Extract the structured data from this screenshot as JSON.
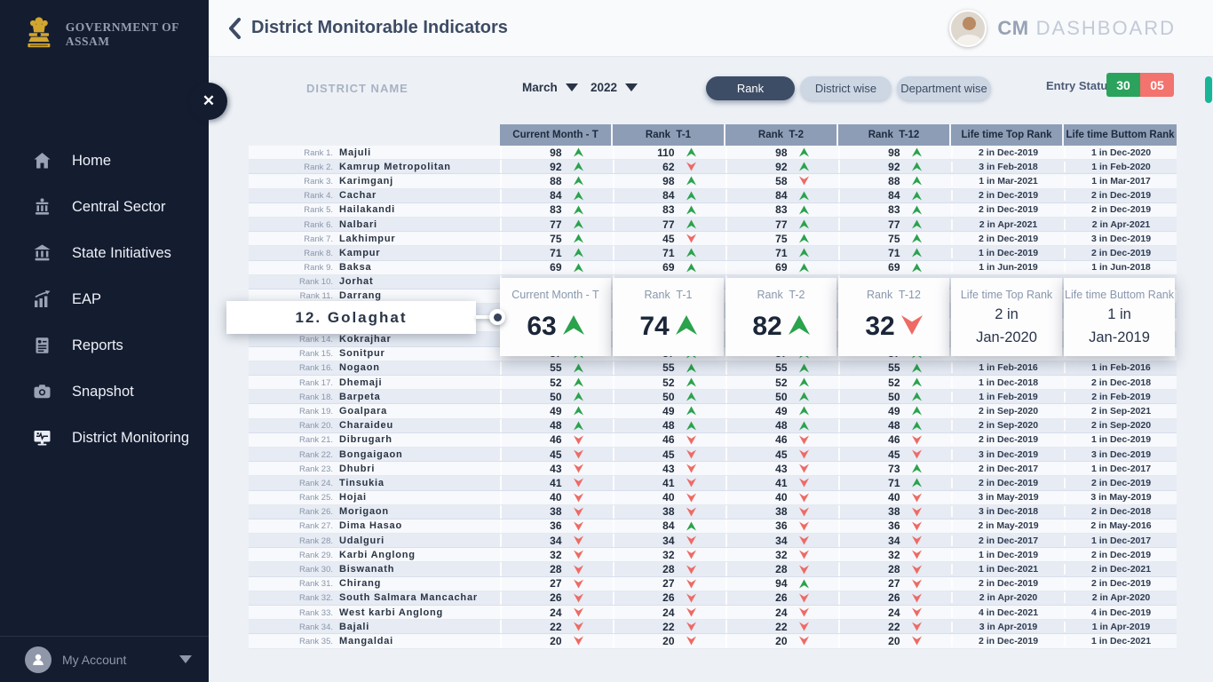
{
  "colors": {
    "up": "#2ba24c",
    "down": "#ee6a64",
    "sidebar": "#141c30",
    "accent": "#3e4d66",
    "entry_green": "#2ba35d",
    "entry_red": "#f3736e",
    "table_header": "#8e9db6",
    "scroll_thumb": "#18b598"
  },
  "sidebar": {
    "logo_text": "GOVERNMENT OF ASSAM",
    "items": [
      {
        "label": "Home",
        "icon": "home-icon"
      },
      {
        "label": "Central Sector",
        "icon": "government-building-icon"
      },
      {
        "label": "State Initiatives",
        "icon": "bank-icon"
      },
      {
        "label": "EAP",
        "icon": "growth-chart-icon"
      },
      {
        "label": "Reports",
        "icon": "report-icon"
      },
      {
        "label": "Snapshot",
        "icon": "camera-icon"
      },
      {
        "label": "District Monitoring",
        "icon": "monitor-pulse-icon"
      }
    ],
    "account_label": "My Account"
  },
  "header": {
    "title": "District Monitorable Indicators",
    "brand_bold": "CM",
    "brand_light": "DASHBOARD"
  },
  "filters": {
    "district_name_label": "DISTRICT NAME",
    "month": "March",
    "year": "2022",
    "view_buttons": [
      {
        "label": "Rank",
        "active": true
      },
      {
        "label": "District wise",
        "active": false
      },
      {
        "label": "Department wise",
        "active": false
      }
    ],
    "entry_status_label": "Entry Status:",
    "entry_status_green": "30",
    "entry_status_red": "05"
  },
  "table": {
    "columns": [
      "Current Month - T",
      "Rank  T-1",
      "Rank  T-2",
      "Rank  T-12",
      "Life time Top Rank",
      "Life time Buttom Rank"
    ],
    "rows": [
      {
        "rank": "Rank 1.",
        "name": "Majuli",
        "c": [
          {
            "v": 98,
            "d": "up"
          },
          {
            "v": 110,
            "d": "up"
          },
          {
            "v": 98,
            "d": "up"
          },
          {
            "v": 98,
            "d": "up"
          }
        ],
        "top": "2 in Dec-2019",
        "bottom": "1 in Dec-2020"
      },
      {
        "rank": "Rank 2.",
        "name": "Kamrup Metropolitan",
        "c": [
          {
            "v": 92,
            "d": "up"
          },
          {
            "v": 62,
            "d": "down"
          },
          {
            "v": 92,
            "d": "up"
          },
          {
            "v": 92,
            "d": "up"
          }
        ],
        "top": "3 in Feb-2018",
        "bottom": "1 in Feb-2020"
      },
      {
        "rank": "Rank 3.",
        "name": "Karimganj",
        "c": [
          {
            "v": 88,
            "d": "up"
          },
          {
            "v": 98,
            "d": "up"
          },
          {
            "v": 58,
            "d": "down"
          },
          {
            "v": 88,
            "d": "up"
          }
        ],
        "top": "1 in Mar-2021",
        "bottom": "1 in Mar-2017"
      },
      {
        "rank": "Rank 4.",
        "name": "Cachar",
        "c": [
          {
            "v": 84,
            "d": "up"
          },
          {
            "v": 84,
            "d": "up"
          },
          {
            "v": 84,
            "d": "up"
          },
          {
            "v": 84,
            "d": "up"
          }
        ],
        "top": "2 in Dec-2019",
        "bottom": "2 in Dec-2019"
      },
      {
        "rank": "Rank 5.",
        "name": "Hailakandi",
        "c": [
          {
            "v": 83,
            "d": "up"
          },
          {
            "v": 83,
            "d": "up"
          },
          {
            "v": 83,
            "d": "up"
          },
          {
            "v": 83,
            "d": "up"
          }
        ],
        "top": "2 in Dec-2019",
        "bottom": "2 in Dec-2019"
      },
      {
        "rank": "Rank 6.",
        "name": "Nalbari",
        "c": [
          {
            "v": 77,
            "d": "up"
          },
          {
            "v": 77,
            "d": "up"
          },
          {
            "v": 77,
            "d": "up"
          },
          {
            "v": 77,
            "d": "up"
          }
        ],
        "top": "2 in Apr-2021",
        "bottom": "2 in Apr-2021"
      },
      {
        "rank": "Rank 7.",
        "name": "Lakhimpur",
        "c": [
          {
            "v": 75,
            "d": "up"
          },
          {
            "v": 45,
            "d": "down"
          },
          {
            "v": 75,
            "d": "up"
          },
          {
            "v": 75,
            "d": "up"
          }
        ],
        "top": "2 in Dec-2019",
        "bottom": "3 in Dec-2019"
      },
      {
        "rank": "Rank 8.",
        "name": "Kampur",
        "c": [
          {
            "v": 71,
            "d": "up"
          },
          {
            "v": 71,
            "d": "up"
          },
          {
            "v": 71,
            "d": "up"
          },
          {
            "v": 71,
            "d": "up"
          }
        ],
        "top": "1 in Dec-2019",
        "bottom": "2 in Dec-2019"
      },
      {
        "rank": "Rank 9.",
        "name": "Baksa",
        "c": [
          {
            "v": 69,
            "d": "up"
          },
          {
            "v": 69,
            "d": "up"
          },
          {
            "v": 69,
            "d": "up"
          },
          {
            "v": 69,
            "d": "up"
          }
        ],
        "top": "1 in Jun-2019",
        "bottom": "1 in Jun-2018"
      },
      {
        "rank": "Rank 10.",
        "name": "Jorhat",
        "c": [
          null,
          null,
          null,
          null
        ],
        "top": "",
        "bottom": ""
      },
      {
        "rank": "Rank 11.",
        "name": "Darrang",
        "c": [
          null,
          null,
          null,
          null
        ],
        "top": "",
        "bottom": ""
      },
      {
        "rank": "",
        "name": "",
        "c": [
          null,
          null,
          null,
          null
        ],
        "top": "",
        "bottom": ""
      },
      {
        "rank": "",
        "name": "",
        "c": [
          null,
          null,
          null,
          null
        ],
        "top": "",
        "bottom": ""
      },
      {
        "rank": "Rank 14.",
        "name": "Kokrajhar",
        "c": [
          null,
          null,
          null,
          null
        ],
        "top": "",
        "bottom": ""
      },
      {
        "rank": "Rank 15.",
        "name": "Sonitpur",
        "c": [
          {
            "v": 57,
            "d": "up"
          },
          {
            "v": 57,
            "d": "up"
          },
          {
            "v": 57,
            "d": "up"
          },
          {
            "v": 57,
            "d": "up"
          }
        ],
        "top": "1 in Dec-2019",
        "bottom": "1 in Dec-2019"
      },
      {
        "rank": "Rank 16.",
        "name": "Nogaon",
        "c": [
          {
            "v": 55,
            "d": "up"
          },
          {
            "v": 55,
            "d": "up"
          },
          {
            "v": 55,
            "d": "up"
          },
          {
            "v": 55,
            "d": "up"
          }
        ],
        "top": "1 in Feb-2016",
        "bottom": "1 in Feb-2016"
      },
      {
        "rank": "Rank 17.",
        "name": "Dhemaji",
        "c": [
          {
            "v": 52,
            "d": "up"
          },
          {
            "v": 52,
            "d": "up"
          },
          {
            "v": 52,
            "d": "up"
          },
          {
            "v": 52,
            "d": "up"
          }
        ],
        "top": "1 in Dec-2018",
        "bottom": "2 in Dec-2018"
      },
      {
        "rank": "Rank 18.",
        "name": "Barpeta",
        "c": [
          {
            "v": 50,
            "d": "up"
          },
          {
            "v": 50,
            "d": "up"
          },
          {
            "v": 50,
            "d": "up"
          },
          {
            "v": 50,
            "d": "up"
          }
        ],
        "top": "1 in Feb-2019",
        "bottom": "2 in Feb-2019"
      },
      {
        "rank": "Rank 19.",
        "name": "Goalpara",
        "c": [
          {
            "v": 49,
            "d": "up"
          },
          {
            "v": 49,
            "d": "up"
          },
          {
            "v": 49,
            "d": "up"
          },
          {
            "v": 49,
            "d": "up"
          }
        ],
        "top": "2 in Sep-2020",
        "bottom": "2 in Sep-2021"
      },
      {
        "rank": "Rank 20.",
        "name": "Charaideu",
        "c": [
          {
            "v": 48,
            "d": "up"
          },
          {
            "v": 48,
            "d": "up"
          },
          {
            "v": 48,
            "d": "up"
          },
          {
            "v": 48,
            "d": "up"
          }
        ],
        "top": "2 in Sep-2020",
        "bottom": "2 in Sep-2020"
      },
      {
        "rank": "Rank 21.",
        "name": "Dibrugarh",
        "c": [
          {
            "v": 46,
            "d": "down"
          },
          {
            "v": 46,
            "d": "down"
          },
          {
            "v": 46,
            "d": "down"
          },
          {
            "v": 46,
            "d": "down"
          }
        ],
        "top": "2 in Dec-2019",
        "bottom": "1 in Dec-2019"
      },
      {
        "rank": "Rank 22.",
        "name": "Bongaigaon",
        "c": [
          {
            "v": 45,
            "d": "down"
          },
          {
            "v": 45,
            "d": "down"
          },
          {
            "v": 45,
            "d": "down"
          },
          {
            "v": 45,
            "d": "down"
          }
        ],
        "top": "3 in Dec-2019",
        "bottom": "3 in Dec-2019"
      },
      {
        "rank": "Rank 23.",
        "name": "Dhubri",
        "c": [
          {
            "v": 43,
            "d": "down"
          },
          {
            "v": 43,
            "d": "down"
          },
          {
            "v": 43,
            "d": "down"
          },
          {
            "v": 73,
            "d": "up"
          }
        ],
        "top": "2 in Dec-2017",
        "bottom": "1 in Dec-2017"
      },
      {
        "rank": "Rank 24.",
        "name": "Tinsukia",
        "c": [
          {
            "v": 41,
            "d": "down"
          },
          {
            "v": 41,
            "d": "down"
          },
          {
            "v": 41,
            "d": "down"
          },
          {
            "v": 71,
            "d": "up"
          }
        ],
        "top": "2 in Dec-2019",
        "bottom": "2 in Dec-2019"
      },
      {
        "rank": "Rank 25.",
        "name": "Hojai",
        "c": [
          {
            "v": 40,
            "d": "down"
          },
          {
            "v": 40,
            "d": "down"
          },
          {
            "v": 40,
            "d": "down"
          },
          {
            "v": 40,
            "d": "down"
          }
        ],
        "top": "3 in May-2019",
        "bottom": "3 in May-2019"
      },
      {
        "rank": "Rank 26.",
        "name": "Morigaon",
        "c": [
          {
            "v": 38,
            "d": "down"
          },
          {
            "v": 38,
            "d": "down"
          },
          {
            "v": 38,
            "d": "down"
          },
          {
            "v": 38,
            "d": "down"
          }
        ],
        "top": "3 in Dec-2018",
        "bottom": "2 in Dec-2018"
      },
      {
        "rank": "Rank 27.",
        "name": "Dima Hasao",
        "c": [
          {
            "v": 36,
            "d": "down"
          },
          {
            "v": 84,
            "d": "up"
          },
          {
            "v": 36,
            "d": "down"
          },
          {
            "v": 36,
            "d": "down"
          }
        ],
        "top": "2 in May-2019",
        "bottom": "2 in May-2016"
      },
      {
        "rank": "Rank 28.",
        "name": "Udalguri",
        "c": [
          {
            "v": 34,
            "d": "down"
          },
          {
            "v": 34,
            "d": "down"
          },
          {
            "v": 34,
            "d": "down"
          },
          {
            "v": 34,
            "d": "down"
          }
        ],
        "top": "2 in Dec-2017",
        "bottom": "1 in Dec-2017"
      },
      {
        "rank": "Rank 29.",
        "name": "Karbi Anglong",
        "c": [
          {
            "v": 32,
            "d": "down"
          },
          {
            "v": 32,
            "d": "down"
          },
          {
            "v": 32,
            "d": "down"
          },
          {
            "v": 32,
            "d": "down"
          }
        ],
        "top": "1 in Dec-2019",
        "bottom": "2 in Dec-2019"
      },
      {
        "rank": "Rank 30.",
        "name": "Biswanath",
        "c": [
          {
            "v": 28,
            "d": "down"
          },
          {
            "v": 28,
            "d": "down"
          },
          {
            "v": 28,
            "d": "down"
          },
          {
            "v": 28,
            "d": "down"
          }
        ],
        "top": "1 in Dec-2021",
        "bottom": "2 in Dec-2021"
      },
      {
        "rank": "Rank 31.",
        "name": "Chirang",
        "c": [
          {
            "v": 27,
            "d": "down"
          },
          {
            "v": 27,
            "d": "down"
          },
          {
            "v": 94,
            "d": "up"
          },
          {
            "v": 27,
            "d": "down"
          }
        ],
        "top": "2 in Dec-2019",
        "bottom": "2 in Dec-2019"
      },
      {
        "rank": "Rank 32.",
        "name": "South Salmara Mancachar",
        "c": [
          {
            "v": 26,
            "d": "down"
          },
          {
            "v": 26,
            "d": "down"
          },
          {
            "v": 26,
            "d": "down"
          },
          {
            "v": 26,
            "d": "down"
          }
        ],
        "top": "2 in Apr-2020",
        "bottom": "2 in Apr-2020"
      },
      {
        "rank": "Rank 33.",
        "name": "West karbi Anglong",
        "c": [
          {
            "v": 24,
            "d": "down"
          },
          {
            "v": 24,
            "d": "down"
          },
          {
            "v": 24,
            "d": "down"
          },
          {
            "v": 24,
            "d": "down"
          }
        ],
        "top": "4 in Dec-2021",
        "bottom": "4 in Dec-2019"
      },
      {
        "rank": "Rank 34.",
        "name": "Bajali",
        "c": [
          {
            "v": 22,
            "d": "down"
          },
          {
            "v": 22,
            "d": "down"
          },
          {
            "v": 22,
            "d": "down"
          },
          {
            "v": 22,
            "d": "down"
          }
        ],
        "top": "3 in Apr-2019",
        "bottom": "1 in Apr-2019"
      },
      {
        "rank": "Rank 35.",
        "name": "Mangaldai",
        "c": [
          {
            "v": 20,
            "d": "down"
          },
          {
            "v": 20,
            "d": "down"
          },
          {
            "v": 20,
            "d": "down"
          },
          {
            "v": 20,
            "d": "down"
          }
        ],
        "top": "2 in Dec-2019",
        "bottom": "1 in Dec-2021"
      }
    ]
  },
  "popup": {
    "district": "12. Golaghat",
    "cards": [
      {
        "label": "Current Month - T",
        "value": "63",
        "dir": "up"
      },
      {
        "label": "Rank  T-1",
        "value": "74",
        "dir": "up"
      },
      {
        "label": "Rank  T-2",
        "value": "82",
        "dir": "up"
      },
      {
        "label": "Rank  T-12",
        "value": "32",
        "dir": "down"
      },
      {
        "label": "Life time Top Rank",
        "line1": "2 in",
        "line2": "Jan-2020"
      },
      {
        "label": "Life time Buttom Rank",
        "line1": "1 in",
        "line2": "Jan-2019"
      }
    ]
  }
}
